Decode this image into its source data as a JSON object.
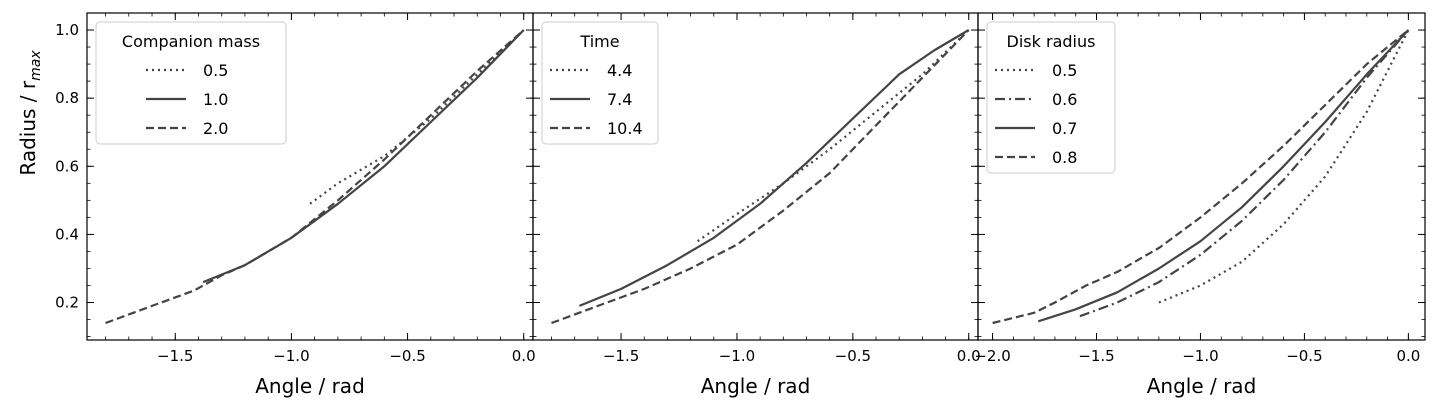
{
  "chart_data": [
    {
      "type": "line",
      "xlabel": "Angle / rad",
      "ylabel": "Radius / r",
      "ylabel_sub": "max",
      "xlim": [
        -1.88,
        0.04
      ],
      "ylim": [
        0.09,
        1.05
      ],
      "xticks": [
        -1.5,
        -1.0,
        -0.5,
        0.0
      ],
      "xtick_labels": [
        "−1.5",
        "−1.0",
        "−0.5",
        "0.0"
      ],
      "yticks": [
        0.2,
        0.4,
        0.6,
        0.8,
        1.0
      ],
      "ytick_labels": [
        "0.2",
        "0.4",
        "0.6",
        "0.8",
        "1.0"
      ],
      "color": "#444444",
      "legend": {
        "title": "Companion mass",
        "position": "upper-left"
      },
      "series": [
        {
          "name": "0.5",
          "style": "dotted",
          "x": [
            -0.92,
            -0.8,
            -0.6,
            -0.4,
            -0.2,
            0.0
          ],
          "y": [
            0.49,
            0.55,
            0.63,
            0.74,
            0.87,
            1.0
          ]
        },
        {
          "name": "1.0",
          "style": "solid",
          "x": [
            -1.38,
            -1.2,
            -1.0,
            -0.8,
            -0.6,
            -0.4,
            -0.2,
            0.0
          ],
          "y": [
            0.26,
            0.31,
            0.39,
            0.49,
            0.6,
            0.73,
            0.86,
            1.0
          ]
        },
        {
          "name": "2.0",
          "style": "dashed",
          "x": [
            -1.8,
            -1.6,
            -1.42,
            -1.3,
            -1.2,
            -1.0,
            -0.8,
            -0.6,
            -0.4,
            -0.2,
            -0.05,
            0.0
          ],
          "y": [
            0.14,
            0.19,
            0.235,
            0.28,
            0.31,
            0.39,
            0.5,
            0.62,
            0.75,
            0.88,
            0.97,
            1.0
          ]
        }
      ]
    },
    {
      "type": "line",
      "xlabel": "Angle / rad",
      "xlim": [
        -1.88,
        0.04
      ],
      "ylim": [
        0.09,
        1.05
      ],
      "xticks": [
        -1.5,
        -1.0,
        -0.5,
        0.0
      ],
      "xtick_labels": [
        "−1.5",
        "−1.0",
        "−0.5",
        "0.0"
      ],
      "yticks": [
        0.2,
        0.4,
        0.6,
        0.8,
        1.0
      ],
      "color": "#444444",
      "legend": {
        "title": "Time",
        "position": "upper-left"
      },
      "series": [
        {
          "name": "4.4",
          "style": "dotted",
          "x": [
            -1.17,
            -1.0,
            -0.8,
            -0.6,
            -0.4,
            -0.2,
            0.0
          ],
          "y": [
            0.38,
            0.46,
            0.55,
            0.65,
            0.76,
            0.87,
            1.0
          ]
        },
        {
          "name": "7.4",
          "style": "solid",
          "x": [
            -1.68,
            -1.5,
            -1.3,
            -1.1,
            -0.9,
            -0.7,
            -0.5,
            -0.3,
            -0.15,
            0.0
          ],
          "y": [
            0.19,
            0.24,
            0.31,
            0.39,
            0.49,
            0.61,
            0.74,
            0.87,
            0.94,
            1.0
          ]
        },
        {
          "name": "10.4",
          "style": "dashed",
          "x": [
            -1.8,
            -1.6,
            -1.4,
            -1.2,
            -1.0,
            -0.8,
            -0.6,
            -0.4,
            -0.2,
            0.0
          ],
          "y": [
            0.14,
            0.19,
            0.24,
            0.3,
            0.37,
            0.47,
            0.58,
            0.72,
            0.86,
            1.0
          ]
        }
      ]
    },
    {
      "type": "line",
      "xlabel": "Angle / rad",
      "xlim": [
        -2.07,
        0.08
      ],
      "ylim": [
        0.09,
        1.05
      ],
      "xticks": [
        -2.0,
        -1.5,
        -1.0,
        -0.5,
        0.0
      ],
      "xtick_labels": [
        "−2.0",
        "−1.5",
        "−1.0",
        "−0.5",
        "0.0"
      ],
      "yticks": [
        0.2,
        0.4,
        0.6,
        0.8,
        1.0
      ],
      "color": "#444444",
      "legend": {
        "title": "Disk radius",
        "position": "upper-left"
      },
      "series": [
        {
          "name": "0.5",
          "style": "dotted",
          "x": [
            -1.2,
            -1.0,
            -0.8,
            -0.6,
            -0.4,
            -0.2,
            0.0
          ],
          "y": [
            0.2,
            0.25,
            0.32,
            0.43,
            0.57,
            0.76,
            1.0
          ]
        },
        {
          "name": "0.6",
          "style": "dashdot",
          "x": [
            -1.58,
            -1.4,
            -1.2,
            -1.0,
            -0.8,
            -0.6,
            -0.4,
            -0.2,
            0.0
          ],
          "y": [
            0.16,
            0.2,
            0.26,
            0.34,
            0.44,
            0.56,
            0.7,
            0.86,
            1.0
          ]
        },
        {
          "name": "0.7",
          "style": "solid",
          "x": [
            -1.78,
            -1.6,
            -1.4,
            -1.2,
            -1.0,
            -0.8,
            -0.6,
            -0.4,
            -0.2,
            0.0
          ],
          "y": [
            0.145,
            0.18,
            0.23,
            0.3,
            0.38,
            0.48,
            0.6,
            0.73,
            0.87,
            1.0
          ]
        },
        {
          "name": "0.8",
          "style": "dashed",
          "x": [
            -2.0,
            -1.8,
            -1.7,
            -1.55,
            -1.4,
            -1.2,
            -1.0,
            -0.8,
            -0.6,
            -0.4,
            -0.2,
            0.0
          ],
          "y": [
            0.14,
            0.17,
            0.2,
            0.25,
            0.29,
            0.36,
            0.45,
            0.55,
            0.66,
            0.78,
            0.9,
            1.0
          ]
        }
      ]
    }
  ]
}
